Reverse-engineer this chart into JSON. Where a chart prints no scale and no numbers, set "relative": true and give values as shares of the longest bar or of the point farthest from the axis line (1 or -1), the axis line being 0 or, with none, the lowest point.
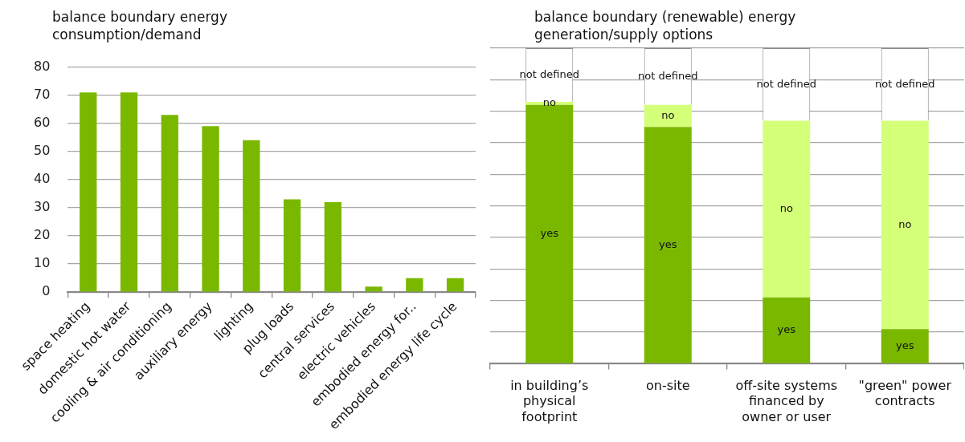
{
  "chart_data": [
    {
      "type": "bar",
      "title": "balance boundary energy consumption/demand",
      "categories": [
        "space heating",
        "domestic hot water",
        "cooling & air conditioning",
        "auxiliary energy",
        "lighting",
        "plug loads",
        "central services",
        "electric vehicles",
        "embodied energy for..",
        "embodied energy life cycle"
      ],
      "values": [
        71,
        71,
        63,
        59,
        54,
        33,
        32,
        2,
        5,
        5
      ],
      "color": "#7ab800",
      "ylim": [
        0,
        80
      ],
      "yticks": [
        0,
        10,
        20,
        30,
        40,
        50,
        60,
        70,
        80
      ],
      "grid": "y"
    },
    {
      "type": "bar",
      "title": "balance boundary (renewable) energy generation/supply options",
      "categories": [
        "in building’s physical footprint",
        "on-site",
        "off-site systems financed by owner or user",
        "\"green\" power contracts"
      ],
      "stacked": true,
      "relative": true,
      "grid": "y",
      "tick_labels": "x",
      "series": [
        {
          "name": "yes",
          "color": "#7ab800",
          "values": [
            0.82,
            0.75,
            0.21,
            0.11
          ]
        },
        {
          "name": "no",
          "color": "#d4ff78",
          "values": [
            0.01,
            0.07,
            0.56,
            0.66
          ]
        },
        {
          "name": "not defined",
          "color": "#ffffff",
          "values": [
            0.17,
            0.18,
            0.23,
            0.23
          ]
        }
      ]
    }
  ]
}
